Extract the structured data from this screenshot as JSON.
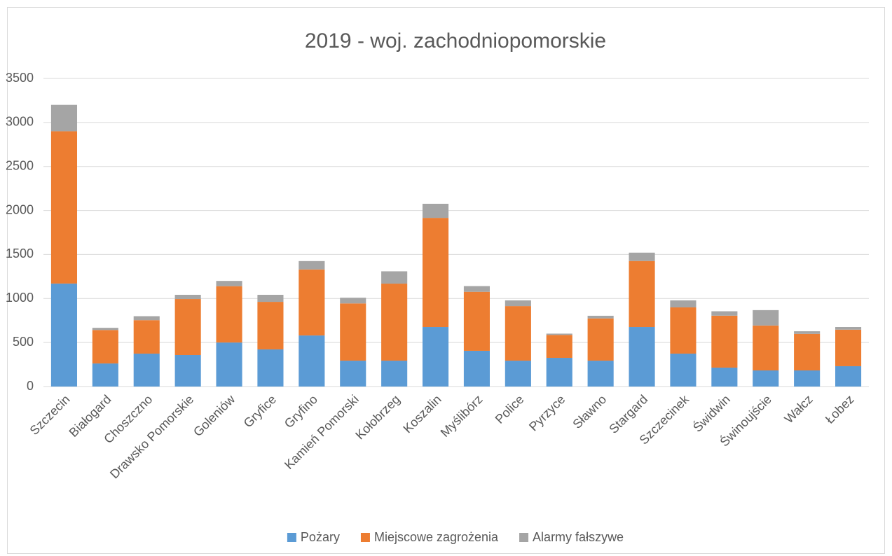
{
  "chart_data": {
    "type": "bar",
    "stacked": true,
    "title": "2019 - woj. zachodniopomorskie",
    "categories": [
      "Szczecin",
      "Białogard",
      "Choszczno",
      "Drawsko Pomorskie",
      "Goleniów",
      "Gryfice",
      "Gryfino",
      "Kamień Pomorski",
      "Kołobrzeg",
      "Koszalin",
      "Myślibórz",
      "Police",
      "Pyrzyce",
      "Sławno",
      "Stargard",
      "Szczecinek",
      "Świdwin",
      "Świnoujście",
      "Wałcz",
      "Łobez"
    ],
    "series": [
      {
        "name": "Pożary",
        "color": "#5b9bd5",
        "values": [
          1170,
          262,
          374,
          358,
          500,
          422,
          580,
          294,
          294,
          676,
          406,
          294,
          326,
          294,
          676,
          374,
          215,
          183,
          183,
          231
        ]
      },
      {
        "name": "Miejscowe zagrożenia",
        "color": "#ed7d31",
        "values": [
          1730,
          380,
          380,
          636,
          640,
          540,
          750,
          650,
          875,
          1240,
          670,
          620,
          260,
          480,
          750,
          525,
          590,
          510,
          415,
          415
        ]
      },
      {
        "name": "Alarmy fałszywe",
        "color": "#a5a5a5",
        "values": [
          300,
          25,
          45,
          48,
          60,
          80,
          95,
          65,
          140,
          160,
          65,
          65,
          15,
          30,
          95,
          80,
          50,
          175,
          30,
          30
        ]
      }
    ],
    "ylim": [
      0,
      3500
    ],
    "yticks": [
      0,
      500,
      1000,
      1500,
      2000,
      2500,
      3000,
      3500
    ],
    "grid": true,
    "legend": "bottom"
  }
}
